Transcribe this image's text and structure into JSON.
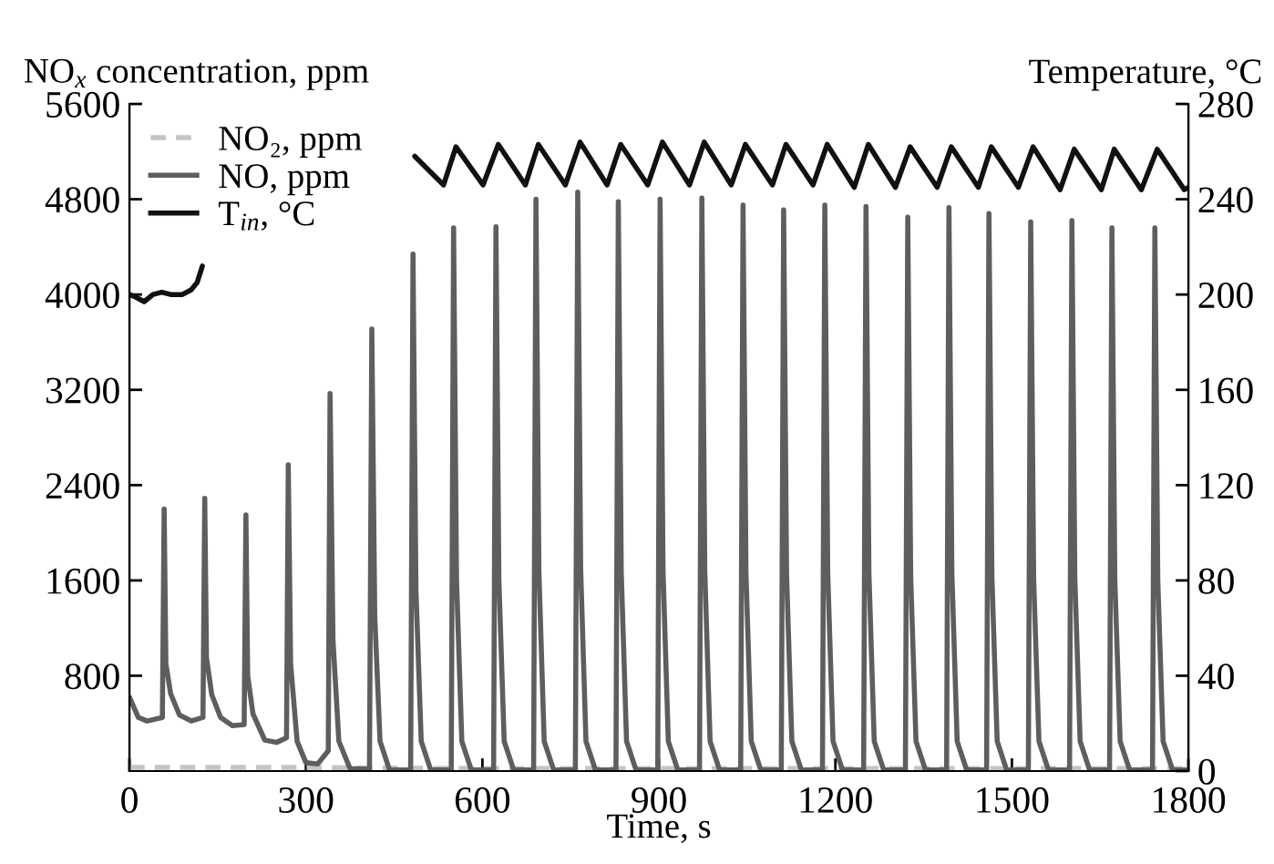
{
  "chart_data": {
    "type": "line",
    "xlabel": "Time, s",
    "ylabel": "NO$_{x}$ concentration, ppm",
    "y2label": "Temperature, °C",
    "xlim": [
      0,
      1800
    ],
    "xticks": [
      0,
      300,
      600,
      900,
      1200,
      1500,
      1800
    ],
    "ylim": [
      0,
      5600
    ],
    "yticks": [
      800,
      1600,
      2400,
      3200,
      4000,
      4800,
      5600
    ],
    "y2lim": [
      0,
      280
    ],
    "y2ticks": [
      0,
      40,
      80,
      120,
      160,
      200,
      240,
      280
    ],
    "grid": false,
    "legend": "top left",
    "marker": "none",
    "series": [
      {
        "name": "NO₂, ppm",
        "color": "#c4c4c4",
        "line_style": "dashed",
        "x": [
          0,
          300,
          600,
          1800
        ],
        "values": [
          30,
          30,
          20,
          20
        ]
      },
      {
        "name": "NO, ppm",
        "color": "#5e5e5e",
        "line_style": "solid",
        "x": [
          0,
          15,
          30,
          56,
          59,
          62,
          70,
          85,
          105,
          125,
          128,
          131,
          140,
          155,
          175,
          195,
          198,
          201,
          210,
          230,
          250,
          267,
          270,
          274,
          285,
          300,
          320,
          338,
          341,
          346,
          356,
          375,
          408,
          412,
          417,
          426,
          442,
          478,
          482,
          487,
          496,
          512,
          547,
          551,
          556,
          565,
          581,
          619,
          623,
          628,
          637,
          653,
          687,
          691,
          696,
          705,
          721,
          758,
          762,
          767,
          776,
          792,
          827,
          831,
          836,
          845,
          861,
          898,
          902,
          907,
          916,
          932,
          969,
          973,
          978,
          987,
          1003,
          1039,
          1043,
          1048,
          1057,
          1073,
          1108,
          1112,
          1117,
          1126,
          1142,
          1178,
          1182,
          1187,
          1196,
          1212,
          1248,
          1252,
          1257,
          1266,
          1282,
          1319,
          1323,
          1328,
          1337,
          1353,
          1389,
          1393,
          1398,
          1407,
          1423,
          1457,
          1461,
          1466,
          1475,
          1491,
          1528,
          1532,
          1537,
          1546,
          1562,
          1598,
          1602,
          1607,
          1616,
          1632,
          1666,
          1670,
          1675,
          1684,
          1700,
          1739,
          1743,
          1748,
          1757,
          1773,
          1800
        ],
        "values": [
          620,
          450,
          420,
          450,
          2200,
          900,
          650,
          470,
          420,
          450,
          2290,
          950,
          640,
          450,
          380,
          390,
          2150,
          800,
          480,
          260,
          240,
          280,
          2570,
          900,
          250,
          70,
          60,
          170,
          3170,
          1100,
          250,
          20,
          15,
          3710,
          1300,
          250,
          10,
          10,
          4340,
          1520,
          250,
          10,
          10,
          4560,
          1600,
          250,
          10,
          10,
          4570,
          1600,
          250,
          10,
          10,
          4800,
          1680,
          250,
          10,
          10,
          4860,
          1700,
          250,
          10,
          10,
          4780,
          1670,
          250,
          10,
          10,
          4800,
          1680,
          250,
          10,
          10,
          4810,
          1680,
          250,
          10,
          10,
          4750,
          1660,
          250,
          10,
          10,
          4710,
          1650,
          250,
          10,
          10,
          4750,
          1660,
          250,
          10,
          10,
          4740,
          1660,
          250,
          10,
          10,
          4650,
          1630,
          250,
          10,
          10,
          4730,
          1660,
          250,
          10,
          10,
          4680,
          1640,
          250,
          10,
          10,
          4610,
          1610,
          250,
          10,
          10,
          4620,
          1620,
          250,
          10,
          10,
          4560,
          1600,
          250,
          10,
          10,
          4560,
          1600,
          250,
          10,
          10
        ]
      },
      {
        "name": "T$_{in}$, °C",
        "color": "#111111",
        "line_style": "solid",
        "axis": "y2",
        "x": [
          0,
          10,
          25,
          40,
          55,
          70,
          90,
          105,
          115,
          124,
          300,
          485,
          534,
          555,
          601,
          627,
          673,
          695,
          741,
          766,
          812,
          835,
          881,
          906,
          952,
          977,
          1023,
          1047,
          1093,
          1116,
          1162,
          1186,
          1232,
          1256,
          1302,
          1327,
          1373,
          1397,
          1443,
          1465,
          1511,
          1536,
          1582,
          1606,
          1652,
          1674,
          1720,
          1747,
          1793,
          1800
        ],
        "values": [
          200,
          199,
          197,
          200,
          201,
          200,
          200,
          202,
          205,
          212,
          null,
          258,
          246,
          262,
          246,
          263,
          246,
          263,
          246,
          264,
          246,
          263,
          246,
          264,
          246,
          264,
          246,
          263,
          246,
          263,
          246,
          263,
          245,
          263,
          245,
          262,
          245,
          262,
          245,
          262,
          245,
          262,
          244,
          261,
          244,
          261,
          244,
          261,
          244,
          245
        ]
      }
    ]
  }
}
